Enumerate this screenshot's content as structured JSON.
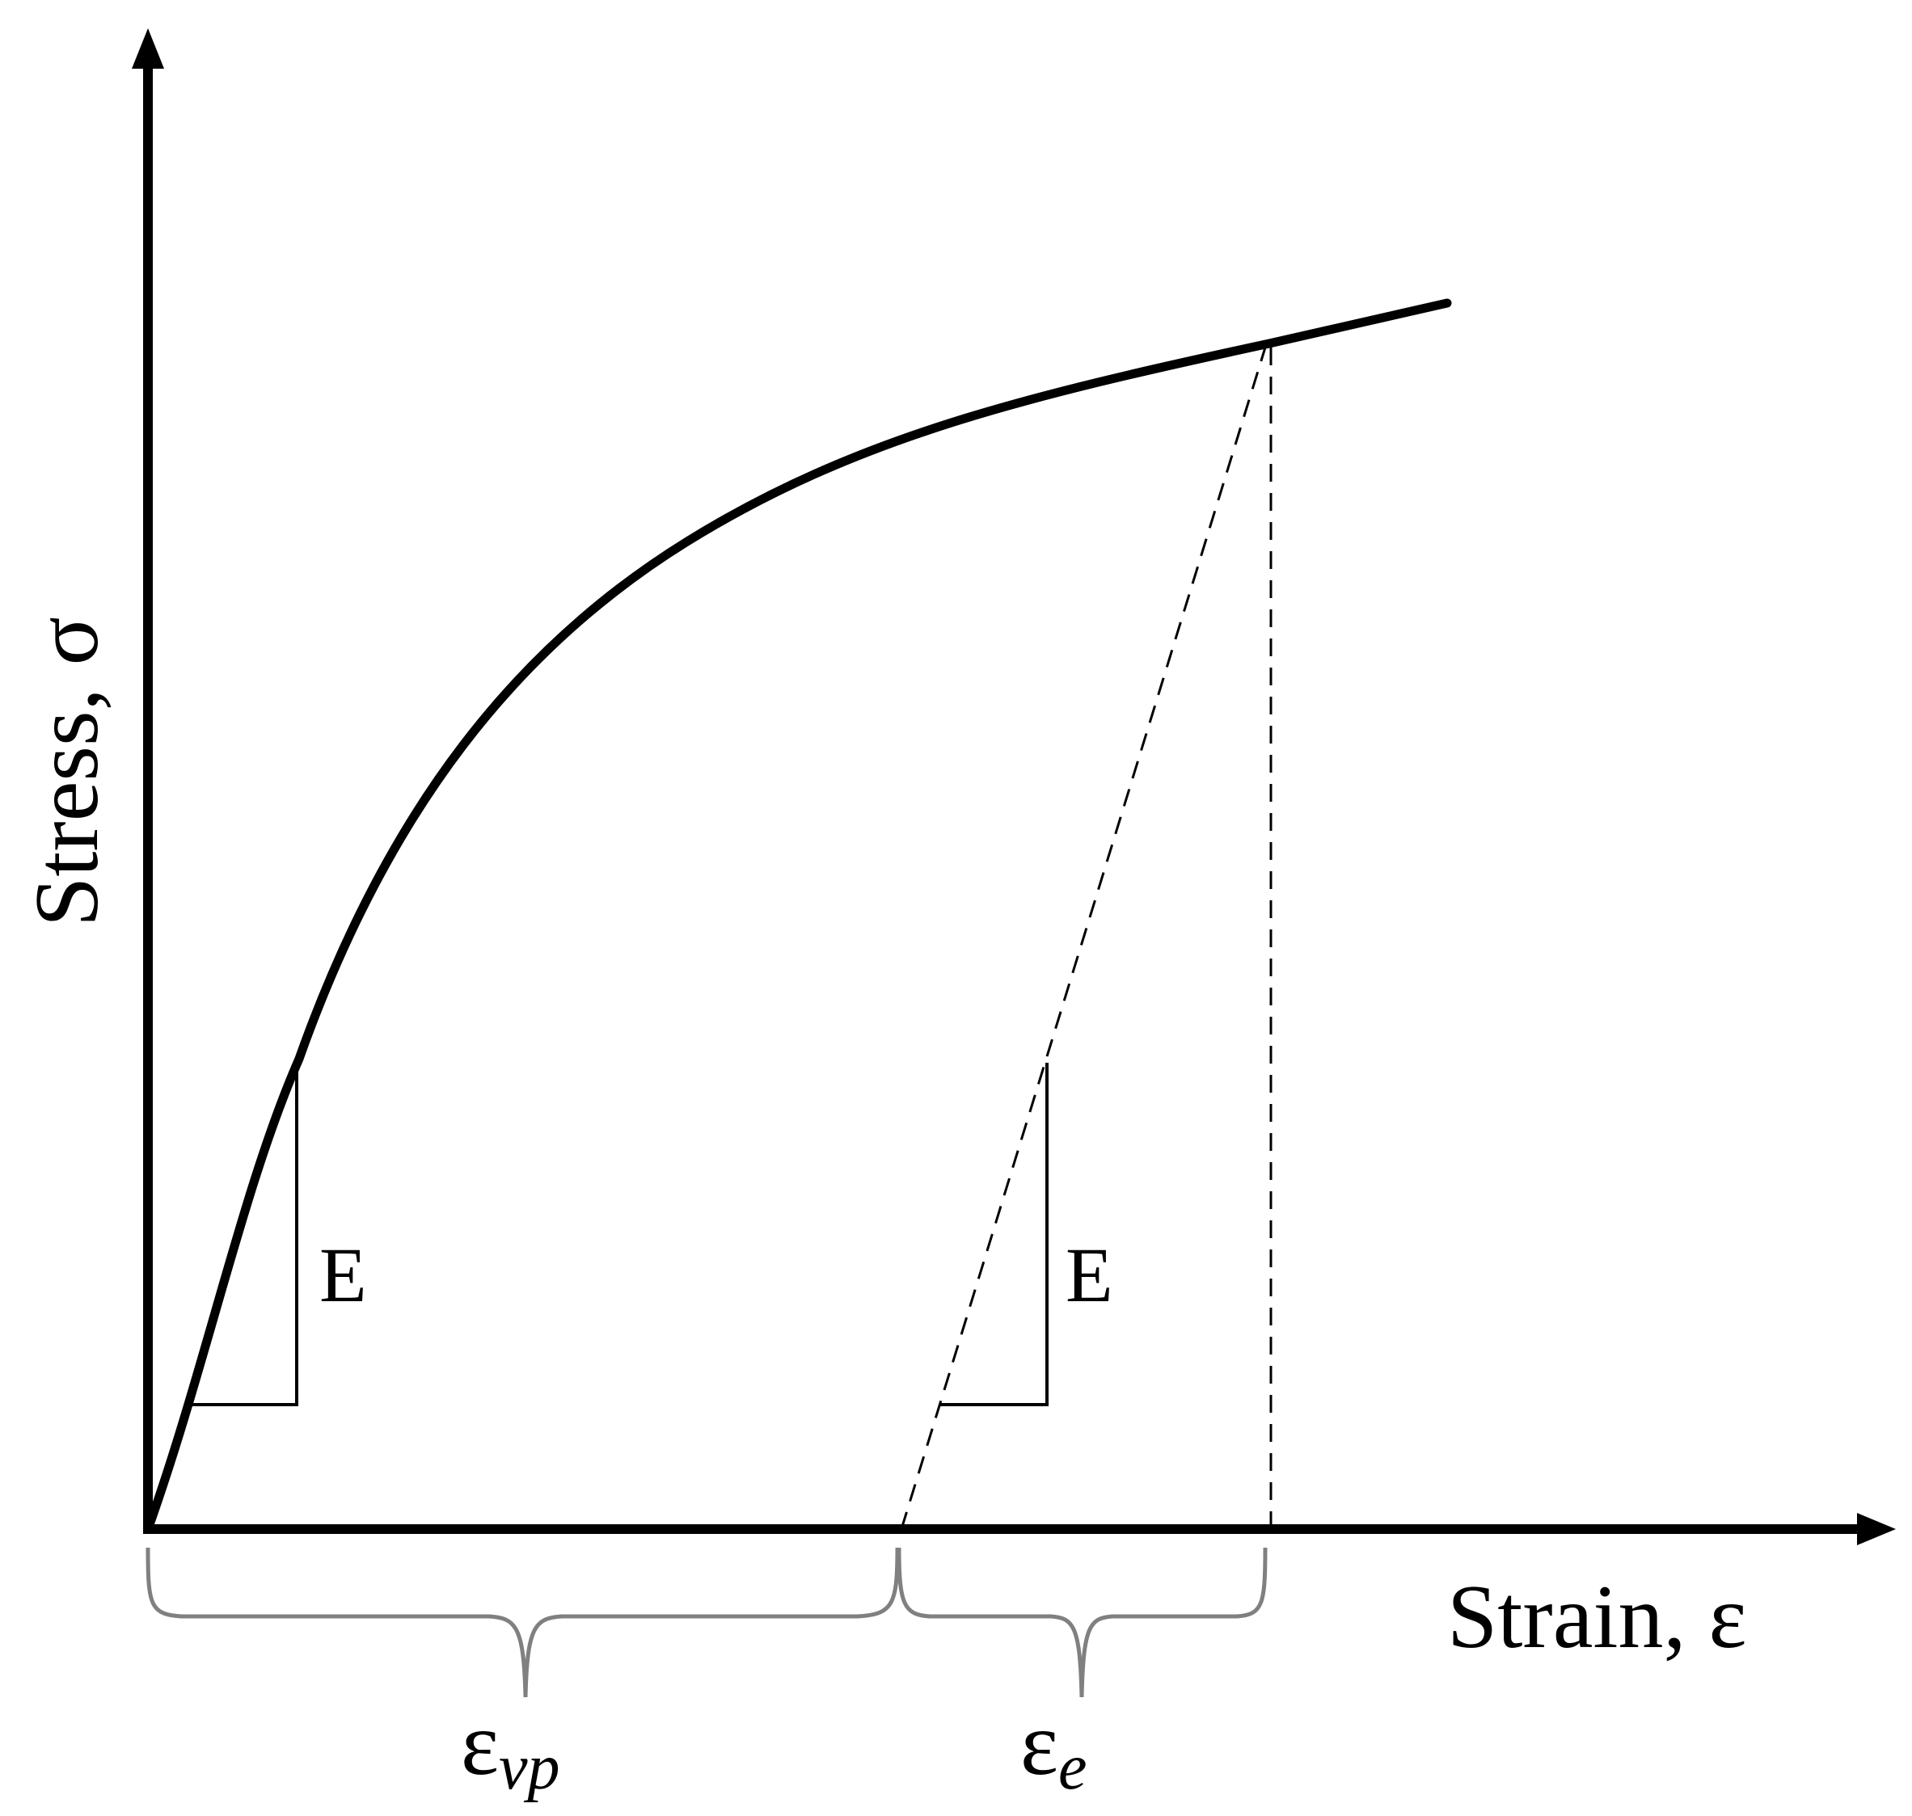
{
  "diagram": {
    "y_axis_label": "Stress, σ",
    "x_axis_label": "Strain, ε",
    "modulus_label_loading": "E",
    "modulus_label_unloading": "E",
    "strain_vp": {
      "base": "ε",
      "subscript": "vp"
    },
    "strain_e": {
      "base": "ε",
      "subscript": "e"
    }
  },
  "colors": {
    "line": "#000000",
    "brace": "#808080",
    "background": "#ffffff"
  }
}
